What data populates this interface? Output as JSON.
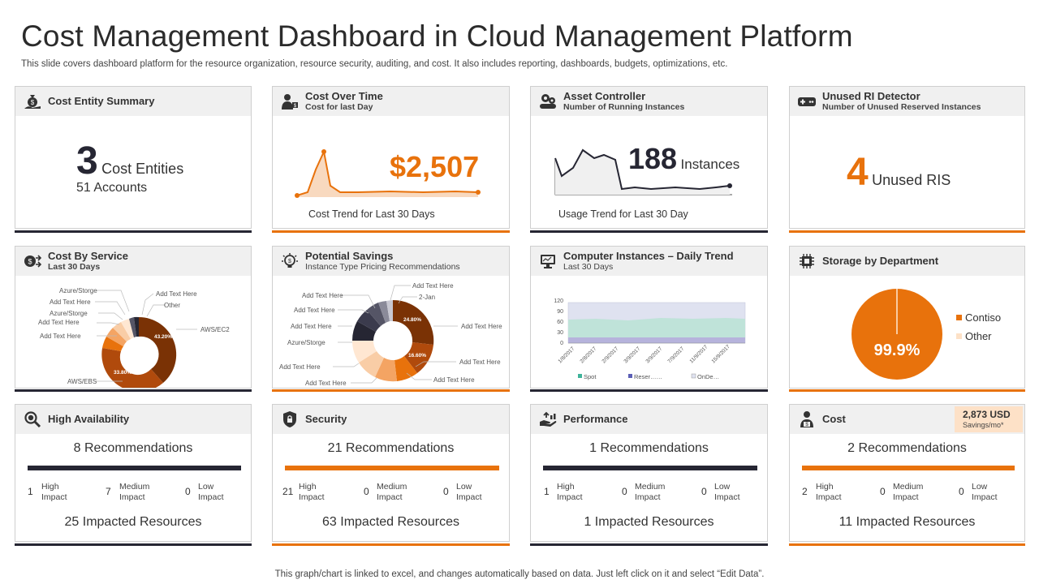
{
  "page": {
    "title": "Cost Management Dashboard in Cloud Management Platform",
    "subtitle": "This slide covers dashboard platform for the resource organization, resource security, auditing, and cost. It also includes reporting, dashboards, budgets, optimizations, etc.",
    "footer": "This graph/chart is linked to excel,  and changes automatically based on data. Just left click on it and select “Edit Data”."
  },
  "colors": {
    "accent": "#e8720c",
    "dark": "#262633",
    "header_bg": "#f0f0f0"
  },
  "cost_entity": {
    "title": "Cost Entity Summary",
    "number": "3",
    "unit": "Cost Entities",
    "accounts": "51 Accounts"
  },
  "cost_over_time": {
    "title": "Cost Over Time",
    "subtitle": "Cost for last Day",
    "value": "$2,507",
    "caption": "Cost Trend  for Last 30 Days"
  },
  "asset_controller": {
    "title": "Asset Controller",
    "subtitle": "Number of Running Instances",
    "number": "188",
    "unit": "Instances",
    "caption": "Usage Trend  for Last 30 Day"
  },
  "unused_ri": {
    "title": "Unused RI Detector",
    "subtitle": "Number of Unused Reserved Instances",
    "number": "4",
    "unit": "Unused RIS"
  },
  "cost_by_service": {
    "title": "Cost By Service",
    "subtitle": "Last 30 Days",
    "labels": [
      "Azure/Storge",
      "Add Text Here",
      "Add Text Here",
      "Other",
      "Add Text Here",
      "Azure/Storge",
      "Add Text Here",
      "Add Text Here",
      "AWS/EC2",
      "AWS/EBS"
    ],
    "slice_labels": [
      "43.20%",
      "33.80%"
    ]
  },
  "potential_savings": {
    "title": "Potential Savings",
    "subtitle": "Instance Type Pricing Recommendations",
    "labels": [
      "Add Text Here",
      "Add Text Here",
      "Add Text Here",
      "2-Jan",
      "Add Text Here",
      "Add Text Here",
      "Add Text Here",
      "Azure/Storge",
      "Add Text Here",
      "Add Text Here",
      "Add Text Here",
      "Add Text Here"
    ],
    "slice_labels": [
      "24.80%",
      "16.60%"
    ]
  },
  "daily_trend": {
    "title": "Computer Instances – Daily Trend",
    "subtitle": "Last 30 Days",
    "y_ticks": [
      "120",
      "90",
      "60",
      "30",
      "0"
    ],
    "x_ticks": [
      "1/8/2017",
      "2/8/2017",
      "2/9/2017",
      "3/9/2017",
      "3/9/2017",
      "7/9/2017",
      "11/9/2017",
      "15/9/2017"
    ],
    "legend": [
      "Spot",
      "Reser……",
      "OnDe…"
    ]
  },
  "storage": {
    "title": "Storage by Department",
    "value": "99.9%",
    "legend": [
      "Contiso",
      "Other"
    ]
  },
  "high_availability": {
    "title": "High Availability",
    "recommendations": "8 Recommendations",
    "high": "1",
    "medium": "7",
    "low": "0",
    "impacted": "25 Impacted Resources"
  },
  "security": {
    "title": "Security",
    "recommendations": "21 Recommendations",
    "high": "21",
    "medium": "0",
    "low": "0",
    "impacted": "63 Impacted Resources"
  },
  "performance": {
    "title": "Performance",
    "recommendations": "1 Recommendations",
    "high": "1",
    "medium": "0",
    "low": "0",
    "impacted": "1 Impacted Resources"
  },
  "cost": {
    "title": "Cost",
    "recommendations": "2 Recommendations",
    "high": "2",
    "medium": "0",
    "low": "0",
    "impacted": "11 Impacted Resources",
    "savings_value": "2,873 USD",
    "savings_label": "Savings/mo*"
  },
  "impact_labels": {
    "high_1": "High",
    "high_2": "Impact",
    "medium_1": "Medium",
    "medium_2": "Impact",
    "low_1": "Low",
    "low_2": "Impact"
  }
}
